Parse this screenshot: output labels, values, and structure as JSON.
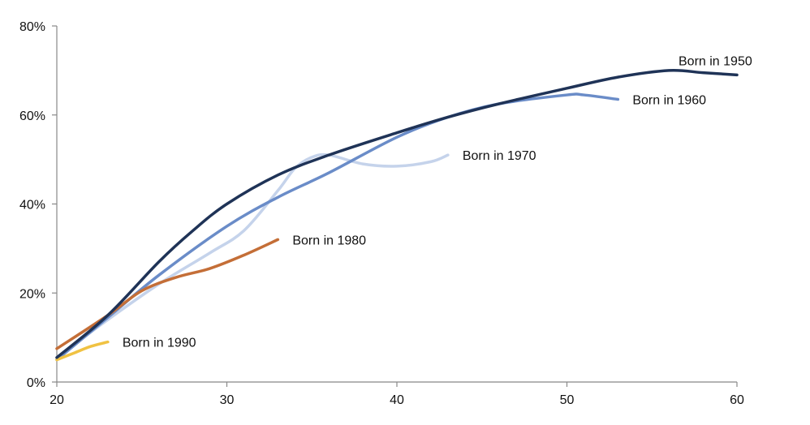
{
  "chart_data": {
    "type": "line",
    "title": "",
    "xlabel": "",
    "ylabel": "",
    "xlim": [
      20,
      60
    ],
    "ylim": [
      0,
      80
    ],
    "x_ticks": [
      {
        "value": 20,
        "label": "20"
      },
      {
        "value": 30,
        "label": "30"
      },
      {
        "value": 40,
        "label": "40"
      },
      {
        "value": 50,
        "label": "50"
      },
      {
        "value": 60,
        "label": "60"
      }
    ],
    "y_ticks": [
      {
        "value": 0,
        "label": "0%"
      },
      {
        "value": 20,
        "label": "20%"
      },
      {
        "value": 40,
        "label": "40%"
      },
      {
        "value": 60,
        "label": "60%"
      },
      {
        "value": 80,
        "label": "80%"
      }
    ],
    "grid": false,
    "legend": "none",
    "series": [
      {
        "name": "Born in 1950",
        "label": "Born in 1950",
        "color": "#1f3357",
        "x": [
          20,
          23,
          26,
          28,
          30,
          33,
          36,
          40,
          43,
          46,
          50,
          53,
          56,
          58,
          60
        ],
        "y": [
          5.5,
          15,
          27,
          34,
          40,
          46.5,
          51,
          56,
          59.5,
          62.5,
          66,
          68.5,
          70,
          69.5,
          69
        ]
      },
      {
        "name": "Born in 1960",
        "label": "Born in 1960",
        "color": "#6a8cc8",
        "x": [
          20,
          23,
          26,
          30,
          33,
          36,
          40,
          43,
          46,
          50,
          51,
          53
        ],
        "y": [
          5,
          14.5,
          24,
          35,
          41.5,
          47,
          55,
          59.5,
          62.5,
          64.5,
          64.5,
          63.5
        ]
      },
      {
        "name": "Born in 1970",
        "label": "Born in 1970",
        "color": "#c5d3eb",
        "x": [
          20,
          23,
          26,
          29,
          31,
          33,
          34,
          35,
          36,
          38,
          40,
          42,
          43
        ],
        "y": [
          5.5,
          14,
          22,
          29,
          34,
          43,
          48,
          50.5,
          51,
          49,
          48.5,
          49.5,
          51
        ]
      },
      {
        "name": "Born in 1980",
        "label": "Born in 1980",
        "color": "#c46e37",
        "x": [
          20,
          23,
          25,
          27,
          29,
          31,
          33
        ],
        "y": [
          7.5,
          15,
          20.5,
          23.5,
          25.5,
          28.5,
          32
        ]
      },
      {
        "name": "Born in 1990",
        "label": "Born in 1990",
        "color": "#f0c242",
        "x": [
          20,
          21,
          22,
          23
        ],
        "y": [
          5,
          6.5,
          8,
          9
        ]
      }
    ]
  }
}
